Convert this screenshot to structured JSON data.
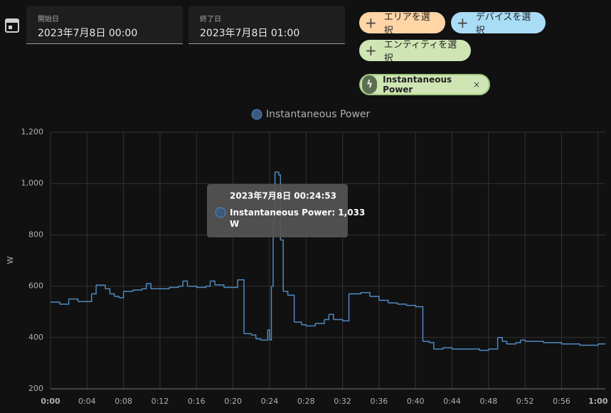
{
  "date_range": {
    "start_label": "開始日",
    "start_value": "2023年7月8日 00:00",
    "end_label": "終了日",
    "end_value": "2023年7月8日 01:00"
  },
  "targets": {
    "area": "エリアを選択",
    "device": "デバイスを選択",
    "entity": "エンティティを選択",
    "selected": "Instantaneous Power"
  },
  "tooltip": {
    "title": "2023年7月8日 00:24:53",
    "text": "Instantaneous Power: 1,033 W"
  },
  "chart_data": {
    "type": "step-line",
    "y_label": "W",
    "series": [
      {
        "name": "Instantaneous Power",
        "color": "#4f8ac2",
        "x": [
          0,
          1,
          2,
          3,
          4,
          4.5,
          5,
          6,
          6.5,
          7,
          7.5,
          8,
          9,
          10,
          10.5,
          11,
          12,
          13,
          14,
          14.5,
          15,
          16,
          17,
          17.5,
          18,
          19,
          20,
          20.5,
          21.2,
          22,
          22.5,
          23,
          23.8,
          24,
          24.2,
          24.4,
          24.6,
          25,
          25.2,
          25.5,
          26,
          26.7,
          27.5,
          28,
          29,
          30,
          30.5,
          31,
          32,
          32.7,
          34,
          35,
          36,
          37,
          38,
          39,
          40,
          40.8,
          41.5,
          42,
          43,
          44,
          45,
          46,
          47,
          48,
          49,
          49.5,
          50,
          51,
          51.5,
          52,
          54,
          56,
          58,
          60
        ],
        "values": [
          538,
          530,
          550,
          540,
          540,
          570,
          604,
          590,
          570,
          560,
          555,
          580,
          585,
          590,
          610,
          590,
          590,
          595,
          600,
          620,
          600,
          595,
          600,
          620,
          605,
          595,
          595,
          625,
          415,
          410,
          395,
          390,
          430,
          390,
          600,
          850,
          1045,
          1033,
          780,
          580,
          565,
          460,
          450,
          445,
          455,
          470,
          490,
          470,
          465,
          570,
          575,
          560,
          545,
          535,
          530,
          525,
          520,
          385,
          380,
          355,
          360,
          355,
          355,
          355,
          350,
          355,
          400,
          385,
          375,
          380,
          390,
          385,
          380,
          375,
          370,
          375
        ]
      }
    ],
    "xlim": [
      0,
      60.8
    ],
    "ylim": [
      200,
      1200
    ],
    "xticks": [
      {
        "value": 0,
        "label": "0:00"
      },
      {
        "value": 4,
        "label": "0:04"
      },
      {
        "value": 8,
        "label": "0:08"
      },
      {
        "value": 12,
        "label": "0:12"
      },
      {
        "value": 16,
        "label": "0:16"
      },
      {
        "value": 20,
        "label": "0:20"
      },
      {
        "value": 24,
        "label": "0:24"
      },
      {
        "value": 28,
        "label": "0:28"
      },
      {
        "value": 32,
        "label": "0:32"
      },
      {
        "value": 36,
        "label": "0:36"
      },
      {
        "value": 40,
        "label": "0:40"
      },
      {
        "value": 44,
        "label": "0:44"
      },
      {
        "value": 48,
        "label": "0:48"
      },
      {
        "value": 52,
        "label": "0:52"
      },
      {
        "value": 56,
        "label": "0:56"
      },
      {
        "value": 60,
        "label": "1:00"
      }
    ],
    "yticks": [
      200,
      400,
      600,
      800,
      {
        "value": 1000,
        "label": "1,000"
      },
      {
        "value": 1200,
        "label": "1,200"
      }
    ],
    "grid": true
  }
}
